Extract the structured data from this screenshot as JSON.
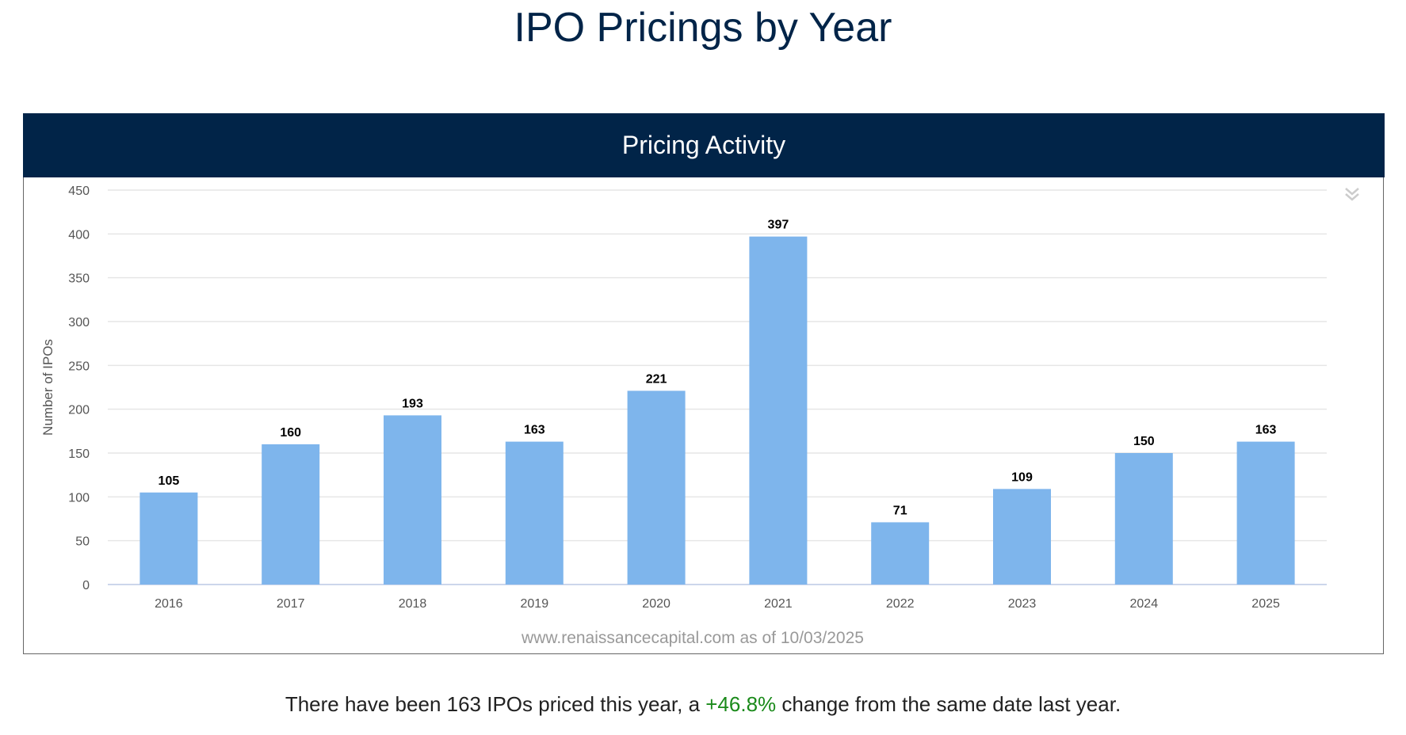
{
  "page_title": "IPO Pricings by Year",
  "chart_header": "Pricing Activity",
  "footer": {
    "prefix": "There have been ",
    "count": "163",
    "middle": " IPOs priced this year, a ",
    "change": "+46.8%",
    "suffix": " change from the same date last year."
  },
  "colors": {
    "bar": "#7eb5ec",
    "header": "#012448",
    "positive": "#1a8a1a"
  },
  "chart_data": {
    "type": "bar",
    "title": "Pricing Activity",
    "categories": [
      "2016",
      "2017",
      "2018",
      "2019",
      "2020",
      "2021",
      "2022",
      "2023",
      "2024",
      "2025"
    ],
    "values": [
      105,
      160,
      193,
      163,
      221,
      397,
      71,
      109,
      150,
      163
    ],
    "xlabel": "",
    "ylabel": "Number of IPOs",
    "ylim": [
      0,
      450
    ],
    "yticks": [
      0,
      50,
      100,
      150,
      200,
      250,
      300,
      350,
      400,
      450
    ],
    "grid": true,
    "credit": "www.renaissancecapital.com as of 10/03/2025"
  }
}
